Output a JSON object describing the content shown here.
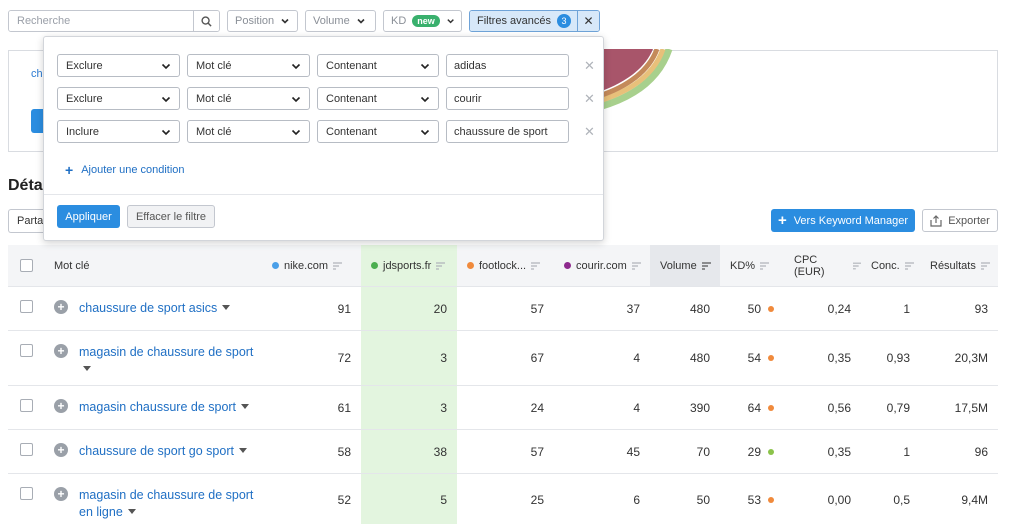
{
  "toolbar": {
    "search_placeholder": "Recherche",
    "position_label": "Position",
    "volume_label": "Volume",
    "kd_label": "KD",
    "kd_badge": "new",
    "advanced_label": "Filtres avancés",
    "advanced_count": "3"
  },
  "background": {
    "link_fragment": "ch",
    "section_title": "Déta",
    "partage_fragment": "Parta",
    "keyword_manager_button": "Vers Keyword Manager",
    "export_button": "Exporter",
    "donut_colors": [
      "#a8556a",
      "#c48a5a",
      "#e8c07a",
      "#a8d08d"
    ]
  },
  "filter_popup": {
    "rows": [
      {
        "action": "Exclure",
        "field": "Mot clé",
        "operator": "Contenant",
        "value": "adidas"
      },
      {
        "action": "Exclure",
        "field": "Mot clé",
        "operator": "Contenant",
        "value": "courir"
      },
      {
        "action": "Inclure",
        "field": "Mot clé",
        "operator": "Contenant",
        "value": "chaussure de sport"
      }
    ],
    "add_condition": "Ajouter une condition",
    "apply": "Appliquer",
    "clear": "Effacer le filtre"
  },
  "table": {
    "headers": {
      "keyword": "Mot clé",
      "nike": "nike.com",
      "jd": "jdsports.fr",
      "footlocker": "footlock...",
      "courir": "courir.com",
      "volume": "Volume",
      "kd": "KD%",
      "cpc": "CPC (EUR)",
      "conc": "Conc.",
      "results": "Résultats"
    },
    "domain_colors": {
      "nike": "#4a9fe8",
      "jd": "#4caf50",
      "footlocker": "#f08a3c",
      "courir": "#8e2a8e"
    },
    "rows": [
      {
        "keyword": "chaussure de sport asics",
        "nike": "91",
        "jd": "20",
        "footlocker": "57",
        "courir": "37",
        "volume": "480",
        "kd": "50",
        "kd_color": "#f08a3c",
        "cpc": "0,24",
        "conc": "1",
        "results": "93"
      },
      {
        "keyword": "magasin de chaussure de sport",
        "nike": "72",
        "jd": "3",
        "footlocker": "67",
        "courir": "4",
        "volume": "480",
        "kd": "54",
        "kd_color": "#f08a3c",
        "cpc": "0,35",
        "conc": "0,93",
        "results": "20,3M"
      },
      {
        "keyword": "magasin chaussure de sport",
        "nike": "61",
        "jd": "3",
        "footlocker": "24",
        "courir": "4",
        "volume": "390",
        "kd": "64",
        "kd_color": "#f08a3c",
        "cpc": "0,56",
        "conc": "0,79",
        "results": "17,5M"
      },
      {
        "keyword": "chaussure de sport go sport",
        "nike": "58",
        "jd": "38",
        "footlocker": "57",
        "courir": "45",
        "volume": "70",
        "kd": "29",
        "kd_color": "#8bc34a",
        "cpc": "0,35",
        "conc": "1",
        "results": "96"
      },
      {
        "keyword": "magasin de chaussure de sport en ligne",
        "nike": "52",
        "jd": "5",
        "footlocker": "25",
        "courir": "6",
        "volume": "50",
        "kd": "53",
        "kd_color": "#f08a3c",
        "cpc": "0,00",
        "conc": "0,5",
        "results": "9,4M"
      }
    ]
  }
}
